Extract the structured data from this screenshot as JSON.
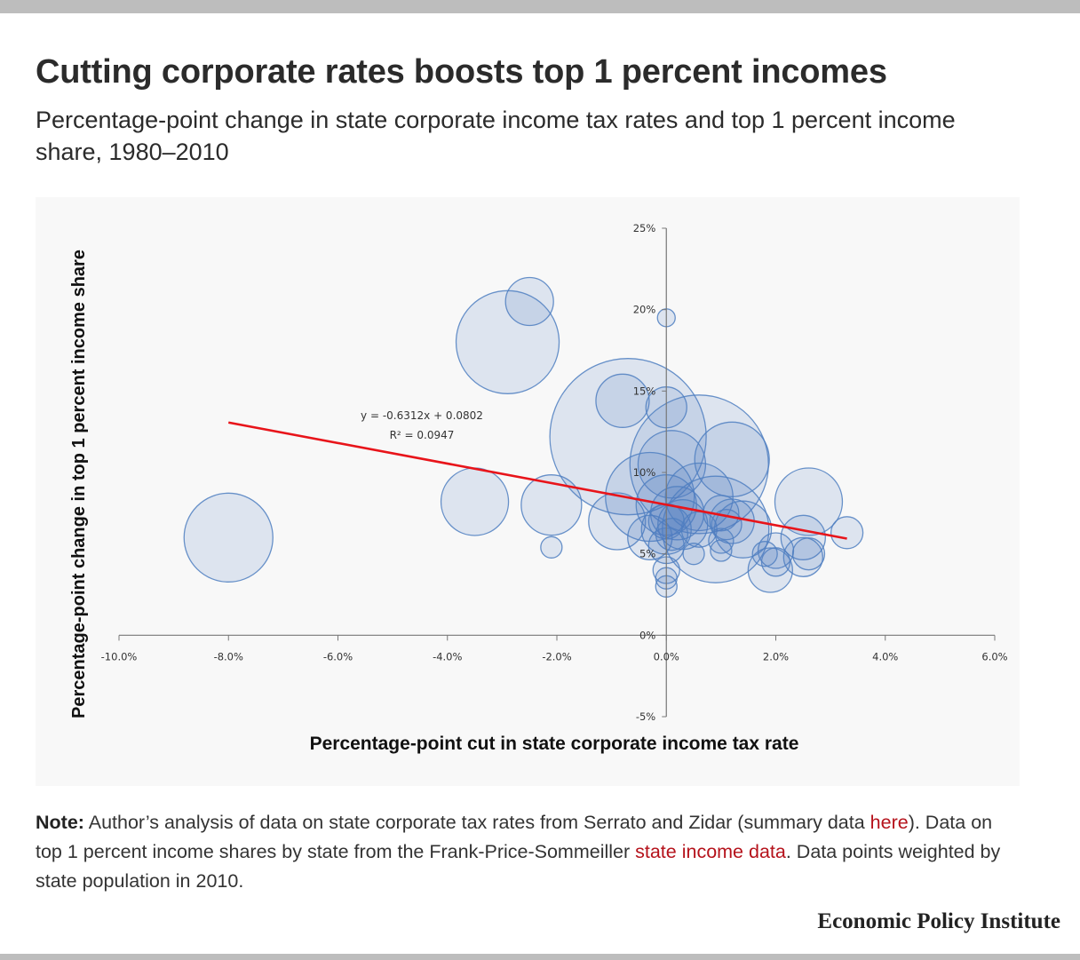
{
  "header": {
    "title": "Cutting corporate rates boosts top 1 percent incomes",
    "subtitle": "Percentage-point change in state corporate income tax rates and top 1 percent income share, 1980–2010"
  },
  "chart_data": {
    "type": "scatter",
    "bubble": true,
    "xlabel": "Percentage-point cut in state corporate income tax rate",
    "ylabel": "Percentage-point change in top 1 percent income share",
    "xlim": [
      -10,
      6
    ],
    "ylim": [
      -5,
      25
    ],
    "x_ticks": [
      "-10.0%",
      "-8.0%",
      "-6.0%",
      "-4.0%",
      "-2.0%",
      "0.0%",
      "2.0%",
      "4.0%",
      "6.0%"
    ],
    "y_ticks": [
      "-5%",
      "0%",
      "5%",
      "10%",
      "15%",
      "20%",
      "25%"
    ],
    "grid": false,
    "bubble_color": "#4f7fc1",
    "points": [
      {
        "x": -8.0,
        "y": 6.0,
        "r": 50
      },
      {
        "x": -2.5,
        "y": 20.5,
        "r": 27
      },
      {
        "x": -2.9,
        "y": 18.0,
        "r": 58
      },
      {
        "x": -3.5,
        "y": 8.2,
        "r": 38
      },
      {
        "x": -2.1,
        "y": 8.0,
        "r": 34
      },
      {
        "x": -2.1,
        "y": 5.4,
        "r": 12
      },
      {
        "x": 0.0,
        "y": 19.5,
        "r": 10
      },
      {
        "x": -0.8,
        "y": 14.4,
        "r": 30
      },
      {
        "x": -0.7,
        "y": 12.2,
        "r": 88
      },
      {
        "x": 0.0,
        "y": 14.0,
        "r": 23
      },
      {
        "x": 0.1,
        "y": 10.5,
        "r": 38
      },
      {
        "x": 0.6,
        "y": 10.5,
        "r": 78
      },
      {
        "x": 1.2,
        "y": 10.8,
        "r": 42
      },
      {
        "x": -0.9,
        "y": 7.0,
        "r": 32
      },
      {
        "x": -0.3,
        "y": 8.5,
        "r": 50
      },
      {
        "x": 0.0,
        "y": 8.0,
        "r": 34
      },
      {
        "x": 0.2,
        "y": 7.5,
        "r": 30
      },
      {
        "x": 0.6,
        "y": 8.5,
        "r": 38
      },
      {
        "x": 0.9,
        "y": 6.5,
        "r": 60
      },
      {
        "x": 0.3,
        "y": 6.8,
        "r": 28
      },
      {
        "x": -0.3,
        "y": 6.0,
        "r": 25
      },
      {
        "x": 0.0,
        "y": 6.5,
        "r": 28
      },
      {
        "x": 0.0,
        "y": 7.0,
        "r": 20
      },
      {
        "x": 0.1,
        "y": 6.2,
        "r": 18
      },
      {
        "x": 0.0,
        "y": 5.5,
        "r": 20
      },
      {
        "x": 0.6,
        "y": 6.5,
        "r": 20
      },
      {
        "x": 1.0,
        "y": 7.5,
        "r": 20
      },
      {
        "x": 1.1,
        "y": 6.8,
        "r": 17
      },
      {
        "x": 1.2,
        "y": 7.0,
        "r": 25
      },
      {
        "x": 1.4,
        "y": 6.5,
        "r": 32
      },
      {
        "x": 1.0,
        "y": 5.8,
        "r": 14
      },
      {
        "x": 1.0,
        "y": 5.2,
        "r": 12
      },
      {
        "x": 0.0,
        "y": 4.0,
        "r": 15
      },
      {
        "x": 0.0,
        "y": 3.5,
        "r": 12
      },
      {
        "x": 0.0,
        "y": 3.0,
        "r": 12
      },
      {
        "x": 0.5,
        "y": 5.0,
        "r": 12
      },
      {
        "x": 2.6,
        "y": 8.2,
        "r": 38
      },
      {
        "x": 2.5,
        "y": 6.0,
        "r": 25
      },
      {
        "x": 2.6,
        "y": 5.0,
        "r": 18
      },
      {
        "x": 2.0,
        "y": 5.2,
        "r": 20
      },
      {
        "x": 2.0,
        "y": 4.5,
        "r": 16
      },
      {
        "x": 1.9,
        "y": 4.0,
        "r": 25
      },
      {
        "x": 2.5,
        "y": 4.8,
        "r": 22
      },
      {
        "x": 3.3,
        "y": 6.3,
        "r": 18
      },
      {
        "x": 1.8,
        "y": 5.0,
        "r": 14
      }
    ],
    "trendline": {
      "color": "#e8141a",
      "x_start": -8.0,
      "x_end": 3.3,
      "slope": -0.6312,
      "intercept": 0.0802,
      "equation": "y = -0.6312x + 0.0802",
      "r_squared": "R² = 0.0947"
    }
  },
  "note": {
    "label": "Note:",
    "text_1": " Author’s analysis of data on state corporate tax rates from Serrato and Zidar (summary data ",
    "link_1": "here",
    "text_2": "). Data on top 1 percent income shares by state from the Frank-Price-Sommeiller ",
    "link_2": "state income data",
    "text_3": ". Data points weighted by state population in 2010."
  },
  "brand": "Economic Policy Institute"
}
